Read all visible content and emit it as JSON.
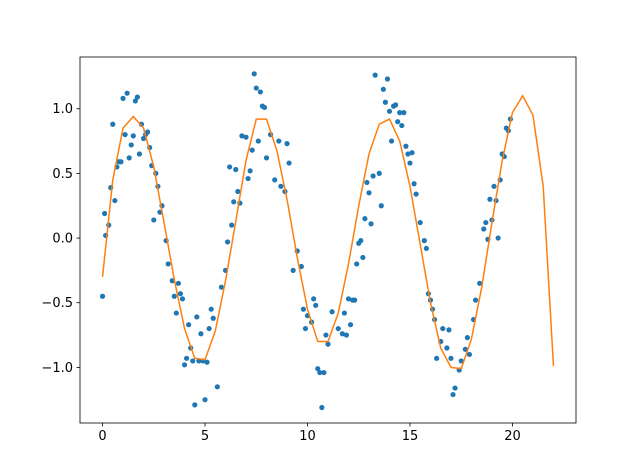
{
  "chart_data": {
    "type": "scatter",
    "xlim": [
      -1.1,
      23.1
    ],
    "ylim": [
      -1.43,
      1.4
    ],
    "xticks": [
      0,
      5,
      10,
      15,
      20
    ],
    "yticks": [
      {
        "value": -1.0,
        "label": "−1.0"
      },
      {
        "value": -0.5,
        "label": "−0.5"
      },
      {
        "value": 0.0,
        "label": "0.0"
      },
      0.5,
      {
        "value": 1.0,
        "label": "1.0"
      }
    ],
    "series": [
      {
        "type": "scatter",
        "color": "#1f77b4",
        "x": [
          0,
          0.1,
          0.15,
          0.3,
          0.4,
          0.5,
          0.6,
          0.7,
          0.8,
          0.9,
          1.0,
          1.1,
          1.2,
          1.3,
          1.4,
          1.5,
          1.6,
          1.7,
          1.8,
          1.9,
          2.0,
          2.1,
          2.2,
          2.3,
          2.4,
          2.5,
          2.6,
          2.7,
          2.8,
          2.9,
          3.1,
          3.2,
          3.4,
          3.5,
          3.6,
          3.7,
          3.8,
          3.9,
          4.0,
          4.1,
          4.2,
          4.3,
          4.4,
          4.5,
          4.6,
          4.7,
          4.8,
          4.9,
          5.0,
          5.1,
          5.2,
          5.3,
          5.4,
          5.6,
          5.8,
          6.0,
          6.1,
          6.2,
          6.3,
          6.4,
          6.5,
          6.6,
          6.7,
          6.8,
          7.0,
          7.1,
          7.2,
          7.3,
          7.4,
          7.5,
          7.6,
          7.7,
          7.8,
          7.9,
          8.0,
          8.2,
          8.4,
          8.6,
          8.7,
          8.9,
          9.0,
          9.1,
          9.3,
          9.5,
          9.7,
          9.8,
          9.9,
          10.0,
          10.2,
          10.3,
          10.4,
          10.5,
          10.6,
          10.7,
          10.8,
          10.9,
          11.0,
          11.2,
          11.5,
          11.7,
          11.8,
          11.9,
          12.0,
          12.1,
          12.2,
          12.3,
          12.4,
          12.5,
          12.6,
          12.7,
          12.8,
          12.9,
          13.0,
          13.1,
          13.2,
          13.3,
          13.5,
          13.6,
          13.7,
          13.8,
          13.9,
          14.0,
          14.1,
          14.2,
          14.3,
          14.4,
          14.5,
          14.6,
          14.7,
          14.8,
          14.9,
          15.0,
          15.1,
          15.2,
          15.3,
          15.5,
          15.7,
          15.8,
          15.9,
          16.0,
          16.1,
          16.2,
          16.3,
          16.5,
          16.6,
          16.8,
          16.9,
          17.0,
          17.1,
          17.2,
          17.4,
          17.5,
          17.7,
          17.8,
          17.9,
          18.1,
          18.2,
          18.4,
          18.6,
          18.7,
          18.8,
          18.9,
          19.0,
          19.1,
          19.2,
          19.3,
          19.4,
          19.5,
          19.6,
          19.7,
          19.8,
          19.9
        ],
        "values": [
          -0.45,
          0.19,
          0.02,
          0.1,
          0.39,
          0.88,
          0.29,
          0.55,
          0.59,
          0.59,
          1.08,
          0.8,
          1.12,
          0.62,
          0.72,
          0.79,
          1.06,
          1.09,
          0.65,
          0.88,
          0.77,
          0.8,
          0.82,
          0.7,
          0.56,
          0.14,
          0.5,
          0.4,
          0.2,
          0.25,
          -0.02,
          -0.2,
          -0.33,
          -0.45,
          -0.58,
          -0.35,
          -0.43,
          -0.47,
          -0.98,
          -0.93,
          -0.67,
          -0.85,
          -0.95,
          -1.29,
          -0.61,
          -0.95,
          -0.74,
          -0.95,
          -1.25,
          -0.96,
          -0.7,
          -0.55,
          -0.62,
          -1.15,
          -0.38,
          -0.25,
          -0.03,
          0.55,
          0.1,
          0.28,
          0.53,
          0.36,
          0.27,
          0.79,
          0.78,
          0.46,
          0.52,
          0.68,
          1.27,
          1.16,
          0.75,
          1.13,
          1.02,
          1.01,
          0.62,
          0.8,
          0.45,
          0.75,
          0.4,
          0.36,
          0.73,
          0.58,
          -0.25,
          -0.1,
          -0.22,
          -0.55,
          -0.7,
          -0.6,
          -0.65,
          -0.47,
          -0.52,
          -1.01,
          -1.04,
          -1.31,
          -1.04,
          -0.75,
          -0.82,
          -0.57,
          -0.7,
          -0.74,
          -0.58,
          -0.75,
          -0.47,
          -0.67,
          -0.48,
          -0.48,
          -0.2,
          -0.04,
          -0.02,
          -0.15,
          0.15,
          0.43,
          0.35,
          0.11,
          0.48,
          1.26,
          0.5,
          0.25,
          1.15,
          1.05,
          1.23,
          0.98,
          0.75,
          1.02,
          1.03,
          0.9,
          0.97,
          0.87,
          0.97,
          0.71,
          0.65,
          0.58,
          0.66,
          0.42,
          0.34,
          0.12,
          -0.02,
          -0.08,
          -0.43,
          -0.48,
          -0.55,
          -0.63,
          -0.93,
          -0.8,
          -0.7,
          -0.85,
          -0.71,
          -0.93,
          -1.21,
          -1.16,
          -1.02,
          -0.95,
          -0.86,
          -0.77,
          -0.9,
          -0.63,
          -0.48,
          -0.35,
          0.07,
          0.12,
          -0.01,
          0.3,
          0.14,
          0.4,
          0.29,
          0.0,
          0.45,
          0.65,
          0.63,
          0.85,
          0.83,
          0.92
        ]
      },
      {
        "type": "line",
        "color": "#ff7f0e",
        "x": [
          0,
          0.5,
          1,
          1.5,
          2,
          2.5,
          3,
          3.5,
          4,
          4.5,
          5,
          5.5,
          6,
          6.5,
          7,
          7.5,
          8,
          8.5,
          9,
          9.5,
          10,
          10.5,
          11,
          11.5,
          12,
          12.5,
          13,
          13.5,
          14,
          14.5,
          15,
          15.5,
          16,
          16.5,
          17,
          17.5,
          18,
          18.5,
          19,
          19.5,
          20,
          20.5,
          21,
          21.5,
          22
        ],
        "values": [
          -0.3,
          0.45,
          0.85,
          0.94,
          0.85,
          0.55,
          0.12,
          -0.32,
          -0.7,
          -0.93,
          -0.94,
          -0.72,
          -0.33,
          0.13,
          0.6,
          0.92,
          0.92,
          0.68,
          0.3,
          -0.15,
          -0.55,
          -0.8,
          -0.8,
          -0.58,
          -0.2,
          0.25,
          0.65,
          0.88,
          0.92,
          0.75,
          0.4,
          -0.05,
          -0.5,
          -0.85,
          -1.0,
          -1.01,
          -0.78,
          -0.38,
          0.12,
          0.6,
          0.97,
          1.1,
          0.95,
          0.4,
          -0.99
        ]
      }
    ]
  }
}
